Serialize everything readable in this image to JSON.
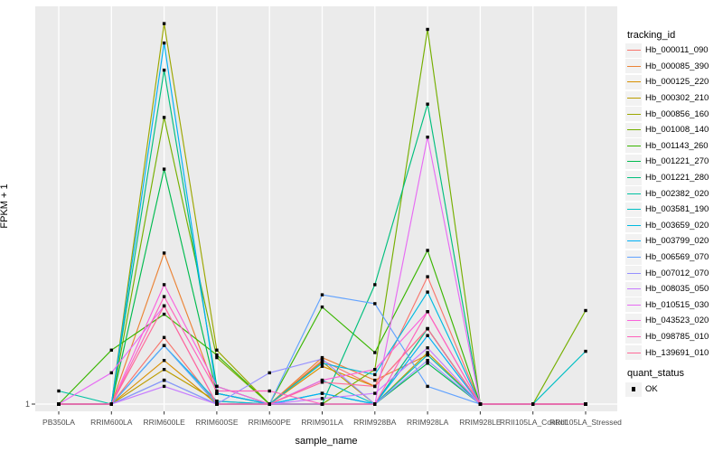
{
  "chart_data": {
    "type": "line",
    "xlabel": "sample_name",
    "ylabel": "FPKM + 1",
    "y_scale": "log10",
    "y_tick_labels": [
      "1"
    ],
    "ylim": [
      1,
      857
    ],
    "grid": true,
    "legend_position": "right",
    "legend_title": "tracking_id",
    "quant_legend": {
      "title": "quant_status",
      "items": [
        "OK"
      ]
    },
    "categories": [
      "PB350LA",
      "RRIM600LA",
      "RRIM600LE",
      "RRIM600SE",
      "RRIM600PE",
      "RRIM901LA",
      "RRIM928BA",
      "RRIM928LA",
      "RRIM928LE",
      "RRII105LA_Control",
      "RRII105LA_Stressed"
    ],
    "series": [
      {
        "name": "Hb_000011_090",
        "color": "#F8766D",
        "values": [
          1,
          1,
          3.1,
          1,
          1,
          2.1,
          1.35,
          8.7,
          1,
          1,
          1
        ]
      },
      {
        "name": "Hb_000085_390",
        "color": "#EB8335",
        "values": [
          1,
          1,
          13,
          1.2,
          1,
          2.2,
          1.5,
          2.3,
          1,
          1,
          1
        ]
      },
      {
        "name": "Hb_000125_220",
        "color": "#D89000",
        "values": [
          1,
          1,
          2.1,
          1,
          1,
          1.9,
          1.35,
          3.6,
          1,
          1,
          1
        ]
      },
      {
        "name": "Hb_000302_210",
        "color": "#BC9D00",
        "values": [
          1,
          1,
          1.8,
          1.05,
          1,
          2.05,
          1,
          2.4,
          1,
          1,
          1
        ]
      },
      {
        "name": "Hb_000856_160",
        "color": "#9CA700",
        "values": [
          1,
          1,
          640,
          2.5,
          1,
          1,
          1,
          3.6,
          1,
          1,
          1
        ]
      },
      {
        "name": "Hb_001008_140",
        "color": "#75AF00",
        "values": [
          1,
          1,
          130,
          2.2,
          1,
          1,
          1.8,
          580,
          1,
          1,
          4.9
        ]
      },
      {
        "name": "Hb_001143_260",
        "color": "#39B600",
        "values": [
          1,
          2.5,
          4.6,
          2.3,
          1,
          5.2,
          2.4,
          13.6,
          1,
          1,
          1
        ]
      },
      {
        "name": "Hb_001221_270",
        "color": "#00BB4E",
        "values": [
          1,
          1,
          54,
          1.2,
          1,
          1,
          1,
          2.0,
          1,
          1,
          1
        ]
      },
      {
        "name": "Hb_001221_280",
        "color": "#00BF7D",
        "values": [
          1,
          1,
          290,
          1.35,
          1,
          1,
          7.6,
          163,
          1,
          1,
          1
        ]
      },
      {
        "name": "Hb_002382_020",
        "color": "#00C1A2",
        "values": [
          1.25,
          1,
          2.7,
          1,
          1,
          1.2,
          1,
          3.6,
          1,
          1,
          1
        ]
      },
      {
        "name": "Hb_003581_190",
        "color": "#00BFC4",
        "values": [
          1,
          1,
          1.5,
          1,
          1,
          1.5,
          1,
          2.3,
          1,
          1,
          2.45
        ]
      },
      {
        "name": "Hb_003659_020",
        "color": "#00BAE0",
        "values": [
          1,
          1,
          2.7,
          1.05,
          1,
          2.0,
          1.65,
          6.7,
          1,
          1,
          1
        ]
      },
      {
        "name": "Hb_003799_020",
        "color": "#00B0F6",
        "values": [
          1,
          1,
          460,
          1.2,
          1,
          1.2,
          1,
          3.2,
          1,
          1,
          1
        ]
      },
      {
        "name": "Hb_006569_070",
        "color": "#61A2FF",
        "values": [
          1,
          1,
          2.7,
          1,
          1,
          6.4,
          5.5,
          1.35,
          1,
          1,
          1
        ]
      },
      {
        "name": "Hb_007012_070",
        "color": "#9590FF",
        "values": [
          1,
          1,
          1.5,
          1,
          1.7,
          2.15,
          1,
          2.1,
          1,
          1,
          1
        ]
      },
      {
        "name": "Hb_008035_050",
        "color": "#C77CFF",
        "values": [
          1,
          1,
          1.35,
          1,
          1,
          1.1,
          1.2,
          2.6,
          1,
          1,
          1
        ]
      },
      {
        "name": "Hb_010515_030",
        "color": "#E76BF3",
        "values": [
          1,
          1.7,
          5.3,
          1,
          1,
          1,
          1,
          93,
          1,
          1,
          1
        ]
      },
      {
        "name": "Hb_043523_020",
        "color": "#FA62DB",
        "values": [
          1,
          1,
          7.6,
          1.35,
          1,
          1.5,
          1.8,
          4.8,
          1,
          1,
          1
        ]
      },
      {
        "name": "Hb_098785_010",
        "color": "#FF62BC",
        "values": [
          1,
          1,
          6.2,
          1.25,
          1.25,
          1,
          1,
          4.8,
          1,
          1,
          1
        ]
      },
      {
        "name": "Hb_139691_010",
        "color": "#FF6A98",
        "values": [
          1,
          1,
          5.3,
          1,
          1,
          1.45,
          1.35,
          3.6,
          1,
          1,
          1
        ]
      }
    ]
  },
  "colors": {
    "panel_bg": "#EBEBEB",
    "grid": "#FFFFFF",
    "point": "#000000",
    "tick_text": "#4D4D4D",
    "tick_mark": "#333333",
    "legend_key_bg": "#F2F2F2"
  }
}
